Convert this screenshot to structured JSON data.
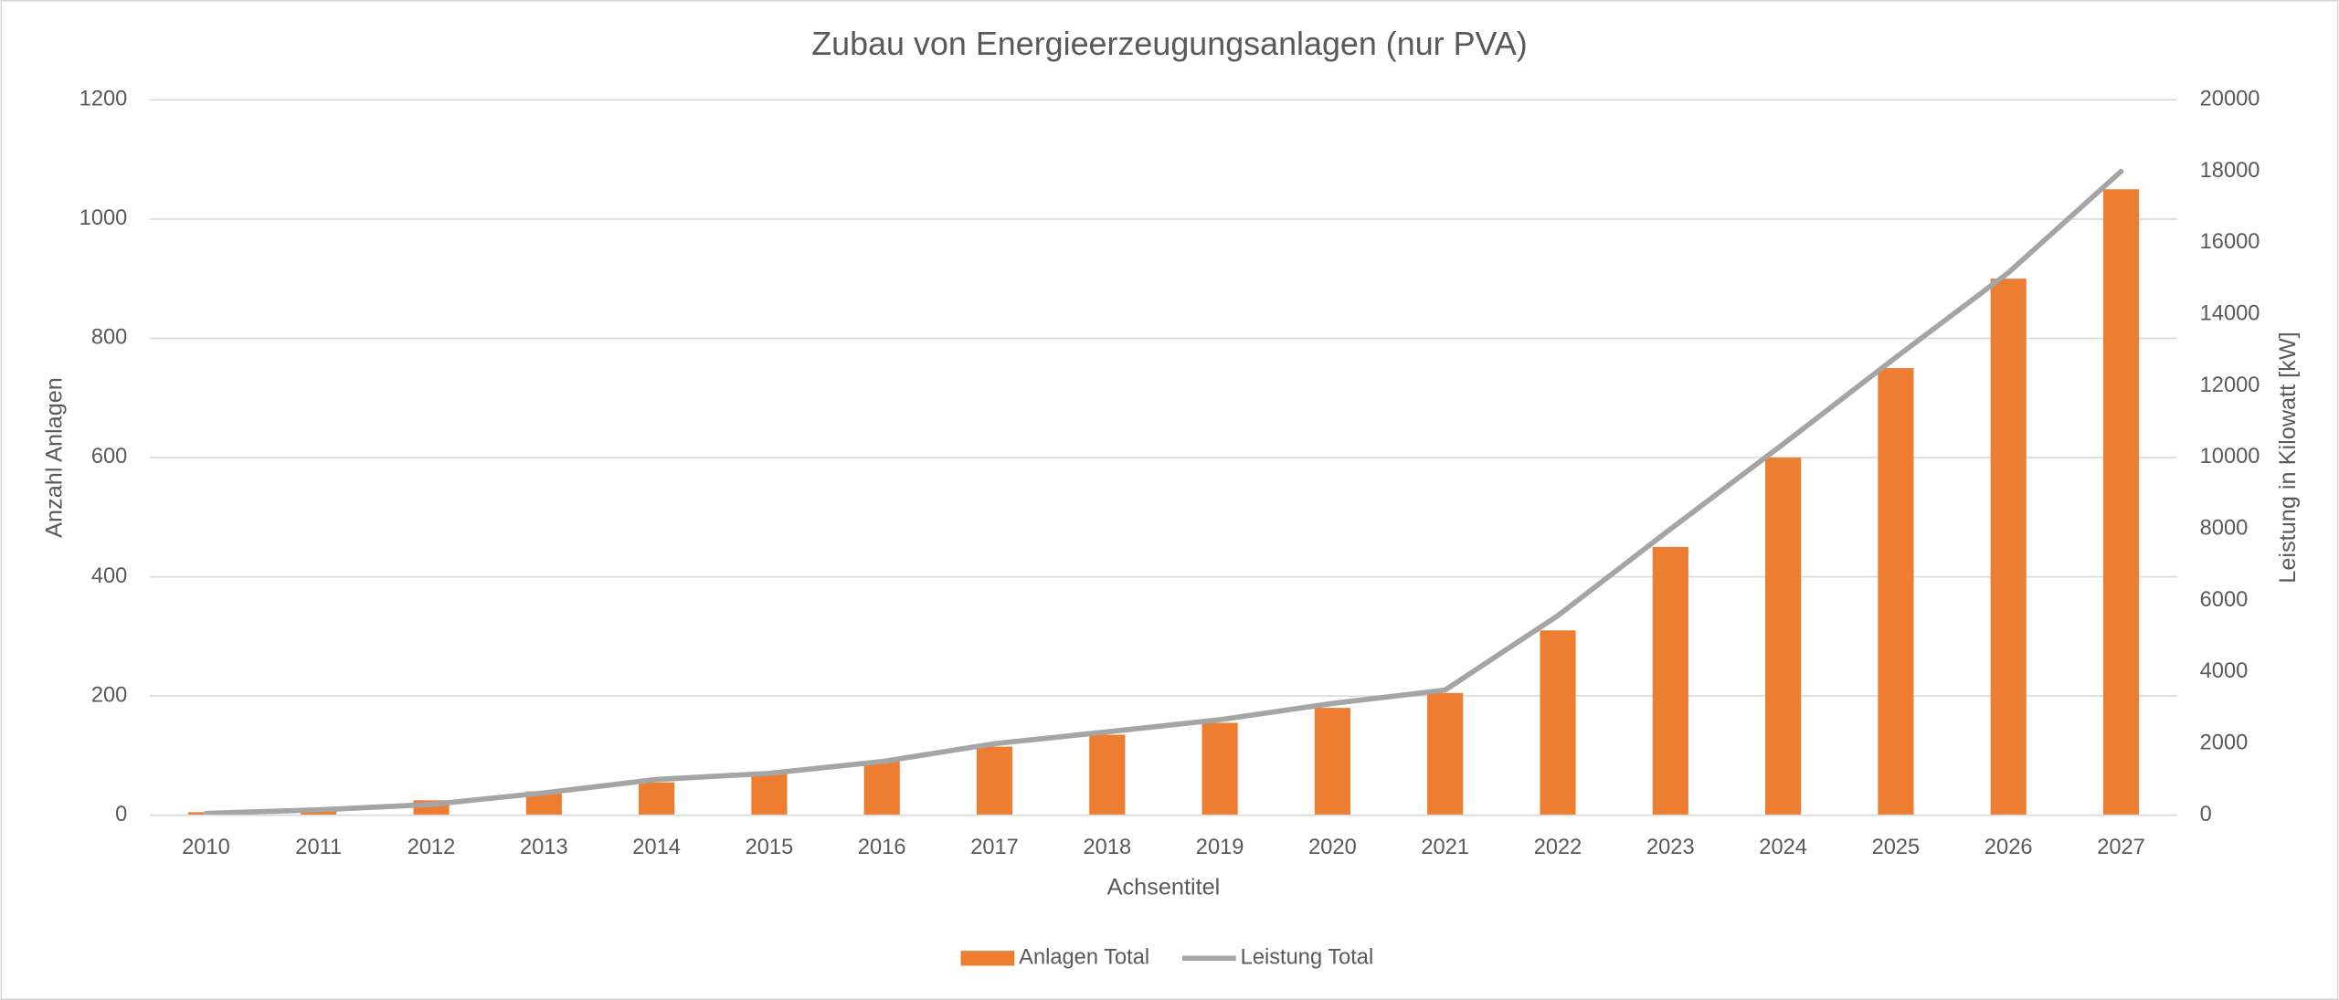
{
  "chart_data": {
    "type": "bar_line",
    "title": "Zubau von Energieerzeugungsanlagen (nur PVA)",
    "x_label": "Achsentitel",
    "y_label": "Anzahl Anlagen",
    "y2_label": "Leistung in Kilowatt [kW]",
    "categories": [
      "2010",
      "2011",
      "2012",
      "2013",
      "2014",
      "2015",
      "2016",
      "2017",
      "2018",
      "2019",
      "2020",
      "2021",
      "2022",
      "2023",
      "2024",
      "2025",
      "2026",
      "2027"
    ],
    "series": [
      {
        "name": "Anlagen Total",
        "type": "bar",
        "color": "#ed7d31",
        "axis": "y",
        "values": [
          5,
          10,
          25,
          40,
          55,
          70,
          90,
          115,
          135,
          155,
          180,
          205,
          310,
          450,
          600,
          750,
          900,
          1050
        ]
      },
      {
        "name": "Leistung Total",
        "type": "line",
        "color": "#a5a5a5",
        "axis": "y2",
        "values": [
          50,
          150,
          300,
          625,
          1000,
          1170,
          1500,
          2000,
          2330,
          2670,
          3125,
          3500,
          5580,
          8000,
          10375,
          12800,
          15170,
          18000
        ]
      }
    ],
    "ylim": [
      0,
      1200
    ],
    "yticks": [
      0,
      200,
      400,
      600,
      800,
      1000,
      1200
    ],
    "y2lim": [
      0,
      20000
    ],
    "y2ticks": [
      0,
      2000,
      4000,
      6000,
      8000,
      10000,
      12000,
      14000,
      16000,
      18000,
      20000
    ],
    "grid": true,
    "legend": "bottom"
  }
}
